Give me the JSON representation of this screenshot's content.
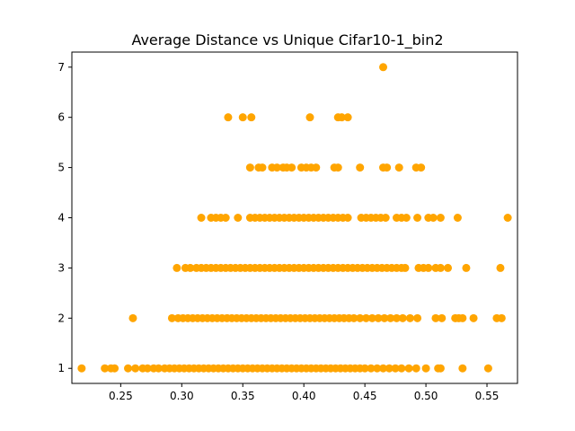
{
  "chart_data": {
    "type": "scatter",
    "title": "Average Distance vs Unique Cifar10-1_bin2",
    "xlabel": "",
    "ylabel": "",
    "xlim": [
      0.21,
      0.575
    ],
    "ylim": [
      0.7,
      7.3
    ],
    "xticks": [
      0.25,
      0.3,
      0.35,
      0.4,
      0.45,
      0.5,
      0.55
    ],
    "xtick_labels": [
      "0.25",
      "0.30",
      "0.35",
      "0.40",
      "0.45",
      "0.50",
      "0.55"
    ],
    "yticks": [
      1,
      2,
      3,
      4,
      5,
      6,
      7
    ],
    "ytick_labels": [
      "1",
      "2",
      "3",
      "4",
      "5",
      "6",
      "7"
    ],
    "marker_color": "#FFA500",
    "grid": false,
    "series": [
      {
        "name": "points",
        "points": [
          [
            0.218,
            1
          ],
          [
            0.237,
            1
          ],
          [
            0.242,
            1
          ],
          [
            0.245,
            1
          ],
          [
            0.256,
            1
          ],
          [
            0.262,
            1
          ],
          [
            0.268,
            1
          ],
          [
            0.272,
            1
          ],
          [
            0.277,
            1
          ],
          [
            0.281,
            1
          ],
          [
            0.286,
            1
          ],
          [
            0.29,
            1
          ],
          [
            0.294,
            1
          ],
          [
            0.298,
            1
          ],
          [
            0.302,
            1
          ],
          [
            0.306,
            1
          ],
          [
            0.31,
            1
          ],
          [
            0.314,
            1
          ],
          [
            0.318,
            1
          ],
          [
            0.322,
            1
          ],
          [
            0.326,
            1
          ],
          [
            0.33,
            1
          ],
          [
            0.334,
            1
          ],
          [
            0.338,
            1
          ],
          [
            0.342,
            1
          ],
          [
            0.346,
            1
          ],
          [
            0.35,
            1
          ],
          [
            0.354,
            1
          ],
          [
            0.358,
            1
          ],
          [
            0.362,
            1
          ],
          [
            0.366,
            1
          ],
          [
            0.37,
            1
          ],
          [
            0.374,
            1
          ],
          [
            0.378,
            1
          ],
          [
            0.382,
            1
          ],
          [
            0.386,
            1
          ],
          [
            0.39,
            1
          ],
          [
            0.394,
            1
          ],
          [
            0.398,
            1
          ],
          [
            0.402,
            1
          ],
          [
            0.406,
            1
          ],
          [
            0.41,
            1
          ],
          [
            0.414,
            1
          ],
          [
            0.418,
            1
          ],
          [
            0.422,
            1
          ],
          [
            0.426,
            1
          ],
          [
            0.43,
            1
          ],
          [
            0.434,
            1
          ],
          [
            0.438,
            1
          ],
          [
            0.442,
            1
          ],
          [
            0.446,
            1
          ],
          [
            0.45,
            1
          ],
          [
            0.455,
            1
          ],
          [
            0.46,
            1
          ],
          [
            0.465,
            1
          ],
          [
            0.47,
            1
          ],
          [
            0.475,
            1
          ],
          [
            0.48,
            1
          ],
          [
            0.486,
            1
          ],
          [
            0.492,
            1
          ],
          [
            0.5,
            1
          ],
          [
            0.51,
            1
          ],
          [
            0.512,
            1
          ],
          [
            0.53,
            1
          ],
          [
            0.551,
            1
          ],
          [
            0.26,
            2
          ],
          [
            0.292,
            2
          ],
          [
            0.297,
            2
          ],
          [
            0.301,
            2
          ],
          [
            0.305,
            2
          ],
          [
            0.309,
            2
          ],
          [
            0.313,
            2
          ],
          [
            0.317,
            2
          ],
          [
            0.321,
            2
          ],
          [
            0.325,
            2
          ],
          [
            0.329,
            2
          ],
          [
            0.333,
            2
          ],
          [
            0.337,
            2
          ],
          [
            0.341,
            2
          ],
          [
            0.345,
            2
          ],
          [
            0.349,
            2
          ],
          [
            0.353,
            2
          ],
          [
            0.357,
            2
          ],
          [
            0.361,
            2
          ],
          [
            0.365,
            2
          ],
          [
            0.369,
            2
          ],
          [
            0.373,
            2
          ],
          [
            0.377,
            2
          ],
          [
            0.381,
            2
          ],
          [
            0.385,
            2
          ],
          [
            0.389,
            2
          ],
          [
            0.393,
            2
          ],
          [
            0.397,
            2
          ],
          [
            0.401,
            2
          ],
          [
            0.405,
            2
          ],
          [
            0.409,
            2
          ],
          [
            0.413,
            2
          ],
          [
            0.417,
            2
          ],
          [
            0.421,
            2
          ],
          [
            0.425,
            2
          ],
          [
            0.429,
            2
          ],
          [
            0.433,
            2
          ],
          [
            0.437,
            2
          ],
          [
            0.441,
            2
          ],
          [
            0.446,
            2
          ],
          [
            0.451,
            2
          ],
          [
            0.456,
            2
          ],
          [
            0.461,
            2
          ],
          [
            0.466,
            2
          ],
          [
            0.471,
            2
          ],
          [
            0.476,
            2
          ],
          [
            0.481,
            2
          ],
          [
            0.487,
            2
          ],
          [
            0.493,
            2
          ],
          [
            0.508,
            2
          ],
          [
            0.513,
            2
          ],
          [
            0.524,
            2
          ],
          [
            0.527,
            2
          ],
          [
            0.53,
            2
          ],
          [
            0.539,
            2
          ],
          [
            0.558,
            2
          ],
          [
            0.562,
            2
          ],
          [
            0.296,
            3
          ],
          [
            0.303,
            3
          ],
          [
            0.307,
            3
          ],
          [
            0.312,
            3
          ],
          [
            0.316,
            3
          ],
          [
            0.32,
            3
          ],
          [
            0.324,
            3
          ],
          [
            0.328,
            3
          ],
          [
            0.332,
            3
          ],
          [
            0.336,
            3
          ],
          [
            0.34,
            3
          ],
          [
            0.344,
            3
          ],
          [
            0.348,
            3
          ],
          [
            0.352,
            3
          ],
          [
            0.356,
            3
          ],
          [
            0.36,
            3
          ],
          [
            0.364,
            3
          ],
          [
            0.368,
            3
          ],
          [
            0.372,
            3
          ],
          [
            0.376,
            3
          ],
          [
            0.38,
            3
          ],
          [
            0.384,
            3
          ],
          [
            0.388,
            3
          ],
          [
            0.392,
            3
          ],
          [
            0.396,
            3
          ],
          [
            0.4,
            3
          ],
          [
            0.404,
            3
          ],
          [
            0.408,
            3
          ],
          [
            0.412,
            3
          ],
          [
            0.416,
            3
          ],
          [
            0.42,
            3
          ],
          [
            0.424,
            3
          ],
          [
            0.428,
            3
          ],
          [
            0.432,
            3
          ],
          [
            0.436,
            3
          ],
          [
            0.44,
            3
          ],
          [
            0.444,
            3
          ],
          [
            0.448,
            3
          ],
          [
            0.452,
            3
          ],
          [
            0.456,
            3
          ],
          [
            0.46,
            3
          ],
          [
            0.464,
            3
          ],
          [
            0.468,
            3
          ],
          [
            0.472,
            3
          ],
          [
            0.476,
            3
          ],
          [
            0.48,
            3
          ],
          [
            0.483,
            3
          ],
          [
            0.494,
            3
          ],
          [
            0.498,
            3
          ],
          [
            0.502,
            3
          ],
          [
            0.508,
            3
          ],
          [
            0.512,
            3
          ],
          [
            0.518,
            3
          ],
          [
            0.533,
            3
          ],
          [
            0.561,
            3
          ],
          [
            0.316,
            4
          ],
          [
            0.324,
            4
          ],
          [
            0.328,
            4
          ],
          [
            0.332,
            4
          ],
          [
            0.336,
            4
          ],
          [
            0.346,
            4
          ],
          [
            0.356,
            4
          ],
          [
            0.36,
            4
          ],
          [
            0.364,
            4
          ],
          [
            0.368,
            4
          ],
          [
            0.372,
            4
          ],
          [
            0.376,
            4
          ],
          [
            0.38,
            4
          ],
          [
            0.384,
            4
          ],
          [
            0.388,
            4
          ],
          [
            0.392,
            4
          ],
          [
            0.396,
            4
          ],
          [
            0.4,
            4
          ],
          [
            0.404,
            4
          ],
          [
            0.408,
            4
          ],
          [
            0.412,
            4
          ],
          [
            0.416,
            4
          ],
          [
            0.42,
            4
          ],
          [
            0.424,
            4
          ],
          [
            0.428,
            4
          ],
          [
            0.432,
            4
          ],
          [
            0.436,
            4
          ],
          [
            0.447,
            4
          ],
          [
            0.451,
            4
          ],
          [
            0.455,
            4
          ],
          [
            0.459,
            4
          ],
          [
            0.463,
            4
          ],
          [
            0.467,
            4
          ],
          [
            0.476,
            4
          ],
          [
            0.48,
            4
          ],
          [
            0.484,
            4
          ],
          [
            0.493,
            4
          ],
          [
            0.502,
            4
          ],
          [
            0.506,
            4
          ],
          [
            0.512,
            4
          ],
          [
            0.526,
            4
          ],
          [
            0.567,
            4
          ],
          [
            0.356,
            5
          ],
          [
            0.363,
            5
          ],
          [
            0.366,
            5
          ],
          [
            0.374,
            5
          ],
          [
            0.378,
            5
          ],
          [
            0.383,
            5
          ],
          [
            0.386,
            5
          ],
          [
            0.39,
            5
          ],
          [
            0.398,
            5
          ],
          [
            0.402,
            5
          ],
          [
            0.406,
            5
          ],
          [
            0.41,
            5
          ],
          [
            0.425,
            5
          ],
          [
            0.428,
            5
          ],
          [
            0.446,
            5
          ],
          [
            0.465,
            5
          ],
          [
            0.468,
            5
          ],
          [
            0.478,
            5
          ],
          [
            0.492,
            5
          ],
          [
            0.496,
            5
          ],
          [
            0.338,
            6
          ],
          [
            0.35,
            6
          ],
          [
            0.357,
            6
          ],
          [
            0.405,
            6
          ],
          [
            0.428,
            6
          ],
          [
            0.431,
            6
          ],
          [
            0.436,
            6
          ],
          [
            0.465,
            7
          ]
        ]
      }
    ]
  }
}
